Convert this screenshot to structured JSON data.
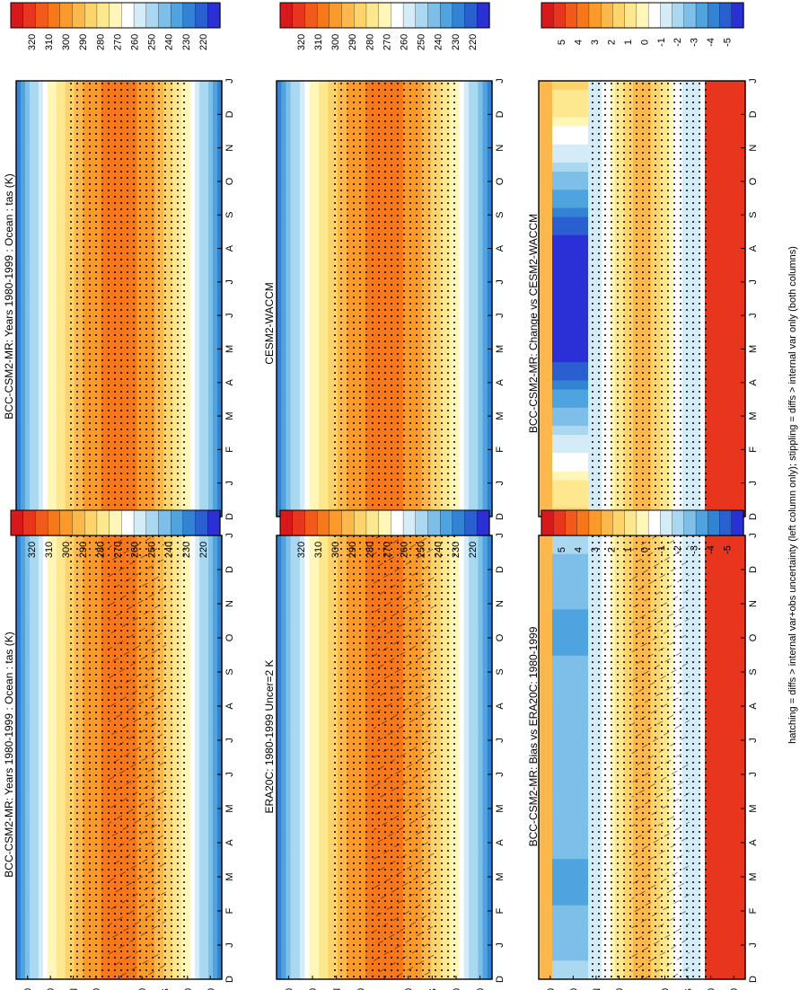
{
  "figure": {
    "caption": "hatching = diffs > internal var+obs uncertainty (left column only); stippling = diffs > internal var only (both columns)"
  },
  "months": [
    "D",
    "J",
    "F",
    "M",
    "A",
    "M",
    "J",
    "J",
    "A",
    "S",
    "O",
    "N",
    "D",
    "J"
  ],
  "lat_ticks": [
    "80",
    "60",
    "°N",
    "20",
    "0",
    "20",
    "°S",
    "60",
    "80"
  ],
  "colors": {
    "temp_scale": [
      "#d7191c",
      "#e8351e",
      "#f25a1c",
      "#f7781b",
      "#fa9a2a",
      "#fcb84a",
      "#fdd36b",
      "#fee88f",
      "#fff6b8",
      "#ffffff",
      "#d4ecf8",
      "#a9d8f0",
      "#7dbfe8",
      "#4fa3de",
      "#3383d4",
      "#2a5fd0",
      "#2b2fd6"
    ],
    "diff_scale": [
      "#d7191c",
      "#e8351e",
      "#f25a1c",
      "#f7781b",
      "#fa9a2a",
      "#fcb84a",
      "#fdd36b",
      "#fee88f",
      "#fff6b8",
      "#ffffff",
      "#d4ecf8",
      "#a9d8f0",
      "#7dbfe8",
      "#4fa3de",
      "#3383d4",
      "#2a5fd0",
      "#2b2fd6"
    ]
  },
  "chart_data": [
    {
      "type": "heatmap",
      "title": "BCC-CSM2-MR: Years 1980-1999 : Ocean : tas (K)",
      "x": [
        "D",
        "J",
        "F",
        "M",
        "A",
        "M",
        "J",
        "J",
        "A",
        "S",
        "O",
        "N",
        "D",
        "J"
      ],
      "y_ticks": [
        "80",
        "60",
        "°N",
        "20",
        "0",
        "20",
        "°S",
        "60",
        "80"
      ],
      "colorbar_labels": [
        "320",
        "310",
        "300",
        "290",
        "280",
        "270",
        "260",
        "250",
        "240",
        "230",
        "220"
      ],
      "hatching": true,
      "stippling": true
    },
    {
      "type": "heatmap",
      "title": "BCC-CSM2-MR: Years 1980-1999 : Ocean : tas (K)",
      "x": [
        "D",
        "J",
        "F",
        "M",
        "A",
        "M",
        "J",
        "J",
        "A",
        "S",
        "O",
        "N",
        "D",
        "J"
      ],
      "y_ticks": [
        "80",
        "60",
        "°N",
        "20",
        "0",
        "20",
        "°S",
        "60",
        "80"
      ],
      "colorbar_labels": [
        "320",
        "310",
        "300",
        "290",
        "280",
        "270",
        "260",
        "250",
        "240",
        "230",
        "220"
      ],
      "hatching": false,
      "stippling": true
    },
    {
      "type": "heatmap",
      "title": "ERA20C: 1980-1999 Uncer=2 K",
      "x": [
        "D",
        "J",
        "F",
        "M",
        "A",
        "M",
        "J",
        "J",
        "A",
        "S",
        "O",
        "N",
        "D",
        "J"
      ],
      "y_ticks": [
        "80",
        "60",
        "°N",
        "20",
        "0",
        "20",
        "°S",
        "60",
        "80"
      ],
      "colorbar_labels": [
        "320",
        "310",
        "300",
        "290",
        "280",
        "270",
        "260",
        "250",
        "240",
        "230",
        "220"
      ],
      "hatching": true,
      "stippling": true
    },
    {
      "type": "heatmap",
      "title": "CESM2-WACCM",
      "x": [
        "D",
        "J",
        "F",
        "M",
        "A",
        "M",
        "J",
        "J",
        "A",
        "S",
        "O",
        "N",
        "D",
        "J"
      ],
      "y_ticks": [
        "80",
        "60",
        "°N",
        "20",
        "0",
        "20",
        "°S",
        "60",
        "80"
      ],
      "colorbar_labels": [
        "320",
        "310",
        "300",
        "290",
        "280",
        "270",
        "260",
        "250",
        "240",
        "230",
        "220"
      ],
      "hatching": false,
      "stippling": true
    },
    {
      "type": "heatmap",
      "title": "BCC-CSM2-MR: Bias vs ERA20C: 1980-1999",
      "x": [
        "D",
        "J",
        "F",
        "M",
        "A",
        "M",
        "J",
        "J",
        "A",
        "S",
        "O",
        "N",
        "D",
        "J"
      ],
      "y_ticks": [
        "80",
        "60",
        "°N",
        "20",
        "0",
        "20",
        "°S",
        "60",
        "80"
      ],
      "colorbar_labels": [
        "5",
        "4",
        "3",
        "2",
        "1",
        "0",
        "-1",
        "-2",
        "-3",
        "-4",
        "-5"
      ],
      "hatching": true,
      "stippling": true
    },
    {
      "type": "heatmap",
      "title": "BCC-CSM2-MR: Change vs CESM2-WACCM",
      "x": [
        "D",
        "J",
        "F",
        "M",
        "A",
        "M",
        "J",
        "J",
        "A",
        "S",
        "O",
        "N",
        "D",
        "J"
      ],
      "y_ticks": [
        "80",
        "60",
        "°N",
        "20",
        "0",
        "20",
        "°S",
        "60",
        "80"
      ],
      "colorbar_labels": [
        "5",
        "4",
        "3",
        "2",
        "1",
        "0",
        "-1",
        "-2",
        "-3",
        "-4",
        "-5"
      ],
      "hatching": false,
      "stippling": true
    }
  ]
}
